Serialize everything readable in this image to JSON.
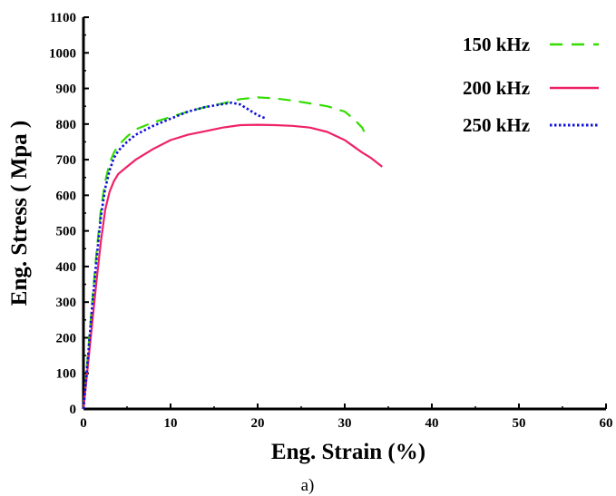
{
  "chart_data": {
    "type": "line",
    "xlabel": "Eng. Strain (%)",
    "ylabel": "Eng. Stress ( Mpa )",
    "caption": "a)",
    "xlim": [
      0,
      60
    ],
    "ylim": [
      0,
      1100
    ],
    "xticks": [
      0,
      10,
      20,
      30,
      40,
      50,
      60
    ],
    "yticks": [
      0,
      100,
      200,
      300,
      400,
      500,
      600,
      700,
      800,
      900,
      1000,
      1100
    ],
    "grid": false,
    "legend_position": "top-right",
    "series": [
      {
        "name": "150 kHz",
        "color": "#33dd00",
        "dash": "dashed",
        "x": [
          0,
          0.5,
          1,
          1.5,
          2,
          2.5,
          3,
          3.5,
          4,
          5,
          6,
          8,
          10,
          12,
          14,
          16,
          18,
          20,
          22,
          24,
          26,
          28,
          30,
          31,
          32,
          32.6
        ],
        "y": [
          0,
          150,
          300,
          440,
          560,
          640,
          690,
          720,
          740,
          765,
          785,
          805,
          820,
          835,
          848,
          858,
          870,
          875,
          872,
          866,
          858,
          850,
          835,
          815,
          790,
          760
        ]
      },
      {
        "name": "200 kHz",
        "color": "#ee2266",
        "dash": "solid",
        "x": [
          0,
          0.5,
          1,
          1.5,
          2,
          2.5,
          3,
          3.5,
          4,
          5,
          6,
          8,
          10,
          12,
          14,
          16,
          18,
          20,
          22,
          24,
          26,
          28,
          30,
          32,
          33,
          34.3
        ],
        "y": [
          0,
          120,
          240,
          360,
          470,
          560,
          610,
          640,
          660,
          680,
          700,
          730,
          755,
          770,
          780,
          790,
          797,
          798,
          797,
          795,
          790,
          778,
          755,
          720,
          705,
          680
        ]
      },
      {
        "name": "250 kHz",
        "color": "#1111dd",
        "dash": "dotted",
        "x": [
          0,
          0.5,
          1,
          1.5,
          2,
          2.5,
          3,
          3.5,
          4,
          5,
          6,
          8,
          10,
          12,
          14,
          16,
          17,
          18,
          19,
          20,
          21
        ],
        "y": [
          0,
          140,
          290,
          420,
          540,
          620,
          670,
          705,
          725,
          750,
          770,
          795,
          815,
          835,
          848,
          856,
          860,
          855,
          840,
          825,
          815
        ]
      }
    ]
  }
}
